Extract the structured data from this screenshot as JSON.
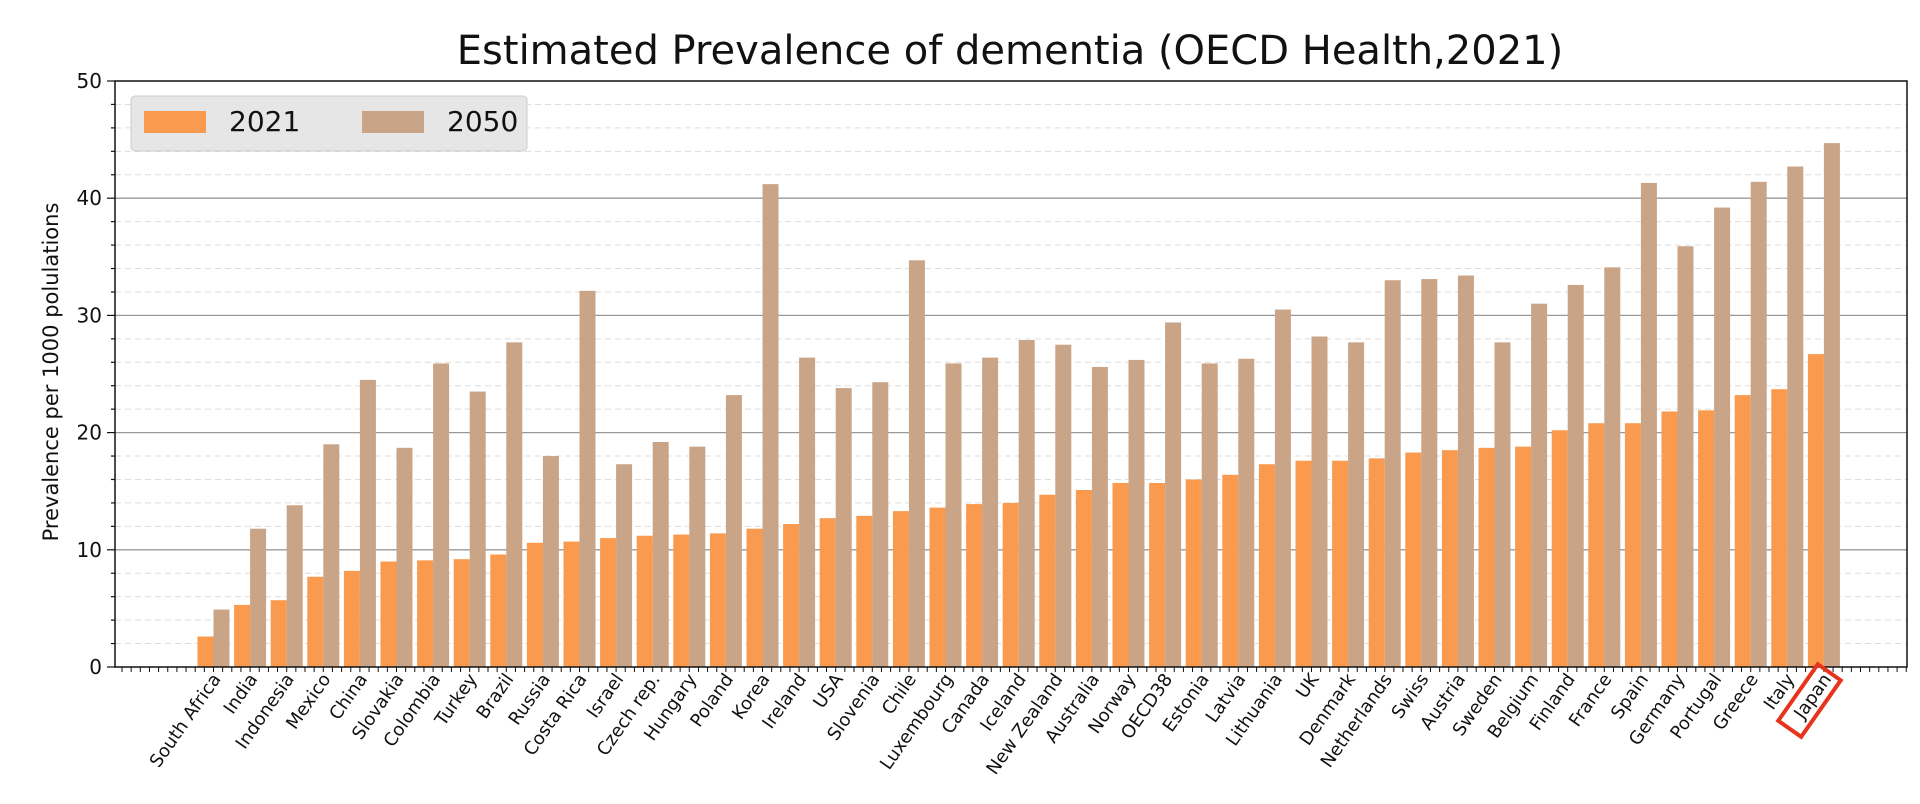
{
  "chart_data": {
    "type": "bar",
    "title": "Estimated Prevalence of dementia (OECD Health,2021)",
    "xlabel": "",
    "ylabel": "Prevalence per 1000 polulations",
    "ylim": [
      0,
      50
    ],
    "yticks": [
      0,
      10,
      20,
      30,
      40,
      50
    ],
    "grid": true,
    "legend_position": "top-left",
    "highlighted_category": "Japan",
    "highlight_color": "#e8341c",
    "categories": [
      "South Africa",
      "India",
      "Indonesia",
      "Mexico",
      "China",
      "Slovakia",
      "Colombia",
      "Turkey",
      "Brazil",
      "Russia",
      "Costa Rica",
      "Israel",
      "Czech rep.",
      "Hungary",
      "Poland",
      "Korea",
      "Ireland",
      "USA",
      "Slovenia",
      "Chile",
      "Luxembourg",
      "Canada",
      "Iceland",
      "New Zealand",
      "Australia",
      "Norway",
      "OECD38",
      "Estonia",
      "Latvia",
      "Lithuania",
      "UK",
      "Denmark",
      "Netherlands",
      "Swiss",
      "Austria",
      "Sweden",
      "Belgium",
      "Finland",
      "France",
      "Spain",
      "Germany",
      "Portugal",
      "Greece",
      "Italy",
      "Japan"
    ],
    "series": [
      {
        "name": "2021",
        "color": "#f99a4e",
        "values": [
          2.6,
          5.3,
          5.7,
          7.7,
          8.2,
          9.0,
          9.1,
          9.2,
          9.6,
          10.6,
          10.7,
          11.0,
          11.2,
          11.3,
          11.4,
          11.8,
          12.2,
          12.7,
          12.9,
          13.3,
          13.6,
          13.9,
          14.0,
          14.7,
          15.1,
          15.7,
          15.7,
          16.0,
          16.4,
          17.3,
          17.6,
          17.6,
          17.8,
          18.3,
          18.5,
          18.7,
          18.8,
          20.2,
          20.8,
          20.8,
          21.8,
          21.9,
          23.2,
          23.7,
          26.7
        ]
      },
      {
        "name": "2050",
        "color": "#c9a487",
        "values": [
          4.9,
          11.8,
          13.8,
          19.0,
          24.5,
          18.7,
          25.9,
          23.5,
          27.7,
          18.0,
          32.1,
          17.3,
          19.2,
          18.8,
          23.2,
          41.2,
          26.4,
          23.8,
          24.3,
          34.7,
          25.9,
          26.4,
          27.9,
          27.5,
          25.6,
          26.2,
          29.4,
          25.9,
          26.3,
          30.5,
          28.2,
          27.7,
          33.0,
          33.1,
          33.4,
          27.7,
          31.0,
          32.6,
          34.1,
          41.3,
          35.9,
          39.2,
          41.4,
          42.7,
          44.7
        ]
      }
    ]
  }
}
